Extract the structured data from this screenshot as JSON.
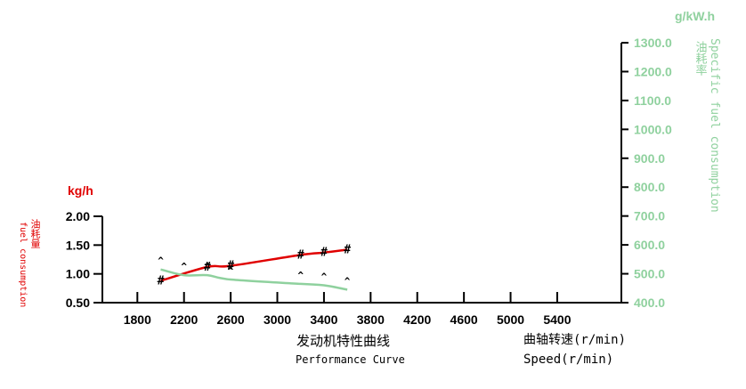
{
  "chart_data": {
    "type": "line",
    "title": "发动机特性曲线",
    "subtitle": "Performance Curve",
    "x_axis": {
      "label_cn": "曲轴转速(r/min)",
      "label_en": "Speed(r/min)",
      "ticks": [
        1800,
        2200,
        2600,
        3000,
        3400,
        3800,
        4200,
        4600,
        5000,
        5400
      ],
      "tick_labels": [
        "1800",
        "2200",
        "2600",
        "3000",
        "3400",
        "3800",
        "4200",
        "4600",
        "5000",
        "5400"
      ],
      "range": [
        1500,
        5950
      ]
    },
    "y_left": {
      "unit": "kg/h",
      "label_cn": "油耗量",
      "label_en": "fuel consumption",
      "ticks": [
        0.5,
        1.0,
        1.5,
        2.0
      ],
      "tick_labels": [
        "0.50",
        "1.00",
        "1.50",
        "2.00"
      ],
      "range": [
        0.5,
        2.0
      ],
      "color": "#e00000"
    },
    "y_right": {
      "unit": "g/kW.h",
      "label_cn": "油耗率",
      "label_en": "Specific fuel consumption",
      "ticks": [
        400,
        500,
        600,
        700,
        800,
        900,
        1000,
        1100,
        1200,
        1300
      ],
      "tick_labels": [
        "400.0",
        "500.0",
        "600.0",
        "700.0",
        "800.0",
        "900.0",
        "1000.0",
        "1100.0",
        "1200.0",
        "1300.0"
      ],
      "range": [
        400,
        1300
      ],
      "color": "#8fd19e"
    },
    "series": [
      {
        "axis": "left",
        "color": "#e00000",
        "marker": "#",
        "x": [
          2000,
          2400,
          2600,
          3200,
          3400,
          3600
        ],
        "y": [
          0.88,
          1.12,
          1.14,
          1.33,
          1.37,
          1.42
        ]
      },
      {
        "axis": "right",
        "color": "#8fd19e",
        "marker": "^",
        "x": [
          2000,
          2200,
          2400,
          2600,
          3200,
          3400,
          3600
        ],
        "y": [
          515,
          495,
          495,
          480,
          465,
          460,
          445
        ]
      }
    ],
    "grid": false,
    "legend": "none"
  }
}
